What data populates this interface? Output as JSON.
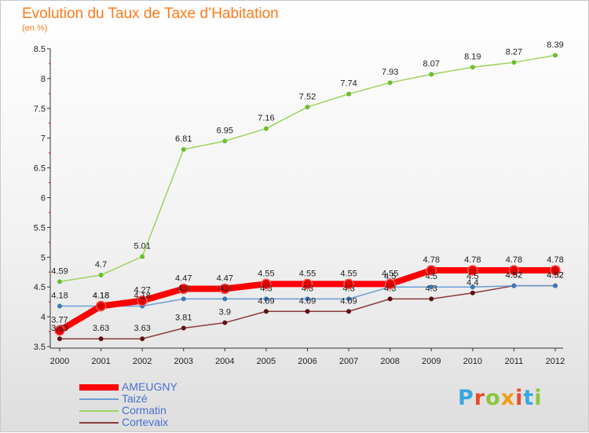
{
  "title": "Evolution du Taux de Taxe d’Habitation",
  "subtitle": "(en %)",
  "brand": {
    "text": "Proxiti",
    "colors": [
      "#3aa6e0",
      "#e84c2a",
      "#8cc63f",
      "#f39c12",
      "#e84c2a",
      "#3aa6e0",
      "#8cc63f"
    ]
  },
  "chart_data": {
    "type": "line",
    "x": [
      "2000",
      "2001",
      "2002",
      "2003",
      "2004",
      "2005",
      "2006",
      "2007",
      "2008",
      "2009",
      "2010",
      "2011",
      "2012"
    ],
    "ylim": [
      3.5,
      8.5
    ],
    "yticks": [
      "3.5",
      "4",
      "4.5",
      "5",
      "5.5",
      "6",
      "6.5",
      "7",
      "7.5",
      "8",
      "8.5"
    ],
    "grid": false,
    "legend_position": "bottom-left",
    "series": [
      {
        "name": "AMEUGNY",
        "color": "#ff0000",
        "marker": "#dd0000",
        "bold": true,
        "values": [
          3.77,
          4.18,
          4.27,
          4.47,
          4.47,
          4.55,
          4.55,
          4.55,
          4.55,
          4.78,
          4.78,
          4.78,
          4.78
        ],
        "labels": [
          "3.77",
          "4.18",
          "4.27",
          "4.47",
          "4.47",
          "4.55",
          "4.55",
          "4.55",
          "4.55",
          "4.78",
          "4.78",
          "4.78",
          "4.78"
        ]
      },
      {
        "name": "Taizé",
        "color": "#6b9ed4",
        "marker": "#3d77b8",
        "values": [
          4.18,
          4.18,
          4.18,
          4.3,
          4.3,
          4.3,
          4.3,
          4.3,
          4.5,
          4.5,
          4.5,
          4.52,
          4.52
        ],
        "labels": [
          "4.18",
          "4.18",
          "4.18",
          "4.3",
          "4.3",
          "4.3",
          "4.3",
          "4.3",
          "4.5",
          "4.5",
          "4.5",
          "4.52",
          "4.52"
        ]
      },
      {
        "name": "Cormatin",
        "color": "#9ed35e",
        "marker": "#6cbf2a",
        "values": [
          4.59,
          4.7,
          5.01,
          6.81,
          6.95,
          7.16,
          7.52,
          7.74,
          7.93,
          8.07,
          8.19,
          8.27,
          8.39
        ],
        "labels": [
          "4.59",
          "4.7",
          "5.01",
          "6.81",
          "6.95",
          "7.16",
          "7.52",
          "7.74",
          "7.93",
          "8.07",
          "8.19",
          "8.27",
          "8.39"
        ]
      },
      {
        "name": "Cortevaix",
        "color": "#8b3a3a",
        "marker": "#5a1414",
        "values": [
          3.63,
          3.63,
          3.63,
          3.81,
          3.9,
          4.09,
          4.09,
          4.09,
          4.3,
          4.3,
          4.4,
          4.52,
          4.52
        ],
        "labels": [
          "3.63",
          "3.63",
          "3.63",
          "3.81",
          "3.9",
          "4.09",
          "4.09",
          "4.09",
          "4.3",
          "4.3",
          "4.4",
          "4.52",
          "4.52"
        ]
      }
    ]
  }
}
